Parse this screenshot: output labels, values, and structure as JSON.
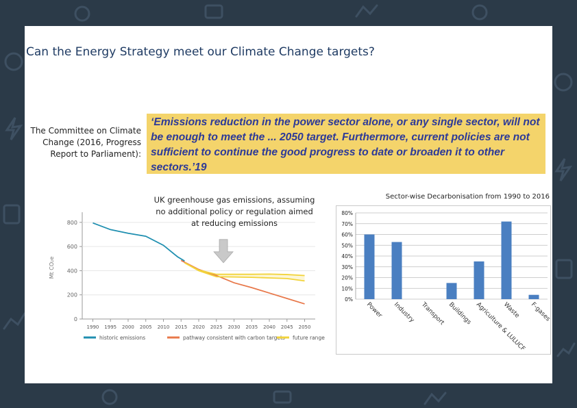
{
  "slide": {
    "title": "Can the Energy Strategy meet our Climate Change targets?",
    "source_label": "The Committee on Climate Change (2016, Progress Report to Parliament):",
    "quote": "‘Emissions reduction in the power sector alone, or any single sector, will not be enough to meet the ... 2050 target. Furthermore, current policies are not sufficient to continue the good progress to date or broaden it to other sectors.’19"
  },
  "colors": {
    "background": "#2b3a48",
    "quote_bg": "#f4d46b",
    "quote_text": "#2d3a98",
    "title": "#1f3b63",
    "historic": "#1f8fb0",
    "pathway": "#e8784a",
    "future": "#f2d33b",
    "bar": "#4a7fc1"
  },
  "chart_data": [
    {
      "type": "line",
      "title": "UK greenhouse gas emissions, assuming no additional policy or regulation aimed at reducing emissions",
      "ylabel": "Mt CO₂e",
      "xlabel": "",
      "ylim": [
        0,
        850
      ],
      "xlim": [
        1987,
        2053
      ],
      "yticks": [
        0,
        200,
        400,
        600,
        800
      ],
      "xticks": [
        1990,
        1995,
        2000,
        2005,
        2010,
        2015,
        2020,
        2025,
        2030,
        2035,
        2040,
        2045,
        2050
      ],
      "series": [
        {
          "name": "historic emissions",
          "color": "#1f8fb0",
          "points": [
            [
              1990,
              795
            ],
            [
              1995,
              740
            ],
            [
              2000,
              710
            ],
            [
              2005,
              685
            ],
            [
              2010,
              610
            ],
            [
              2014,
              515
            ],
            [
              2016,
              480
            ]
          ]
        },
        {
          "name": "pathway consistent with carbon targets",
          "color": "#e8784a",
          "points": [
            [
              2015,
              485
            ],
            [
              2020,
              410
            ],
            [
              2025,
              360
            ],
            [
              2030,
              300
            ],
            [
              2035,
              260
            ],
            [
              2040,
              215
            ],
            [
              2045,
              170
            ],
            [
              2050,
              125
            ]
          ]
        },
        {
          "name": "future range (upper)",
          "legend": false,
          "color": "#f2d33b",
          "points": [
            [
              2016,
              465
            ],
            [
              2020,
              405
            ],
            [
              2025,
              370
            ],
            [
              2030,
              370
            ],
            [
              2035,
              370
            ],
            [
              2040,
              372
            ],
            [
              2045,
              368
            ],
            [
              2050,
              360
            ]
          ]
        },
        {
          "name": "future range (lower)",
          "legend": false,
          "color": "#f2d33b",
          "points": [
            [
              2016,
              465
            ],
            [
              2020,
              400
            ],
            [
              2025,
              350
            ],
            [
              2030,
              348
            ],
            [
              2035,
              345
            ],
            [
              2040,
              340
            ],
            [
              2045,
              335
            ],
            [
              2050,
              315
            ]
          ]
        }
      ],
      "legend": [
        "historic emissions",
        "pathway consistent with carbon targets",
        "future range"
      ],
      "legend_position": "bottom",
      "annotation": "arrow pointing to future range"
    },
    {
      "type": "bar",
      "title": "Sector-wise Decarbonisation from 1990 to 2016",
      "categories": [
        "Power",
        "Industry",
        "Transport",
        "Buildings",
        "Agriculture & LULUCF",
        "Waste",
        "F-gases"
      ],
      "values": [
        60,
        53,
        0,
        15,
        35,
        72,
        4
      ],
      "ylim": [
        0,
        80
      ],
      "yticks": [
        "0%",
        "10%",
        "20%",
        "30%",
        "40%",
        "50%",
        "60%",
        "70%",
        "80%"
      ],
      "grid": true
    }
  ]
}
